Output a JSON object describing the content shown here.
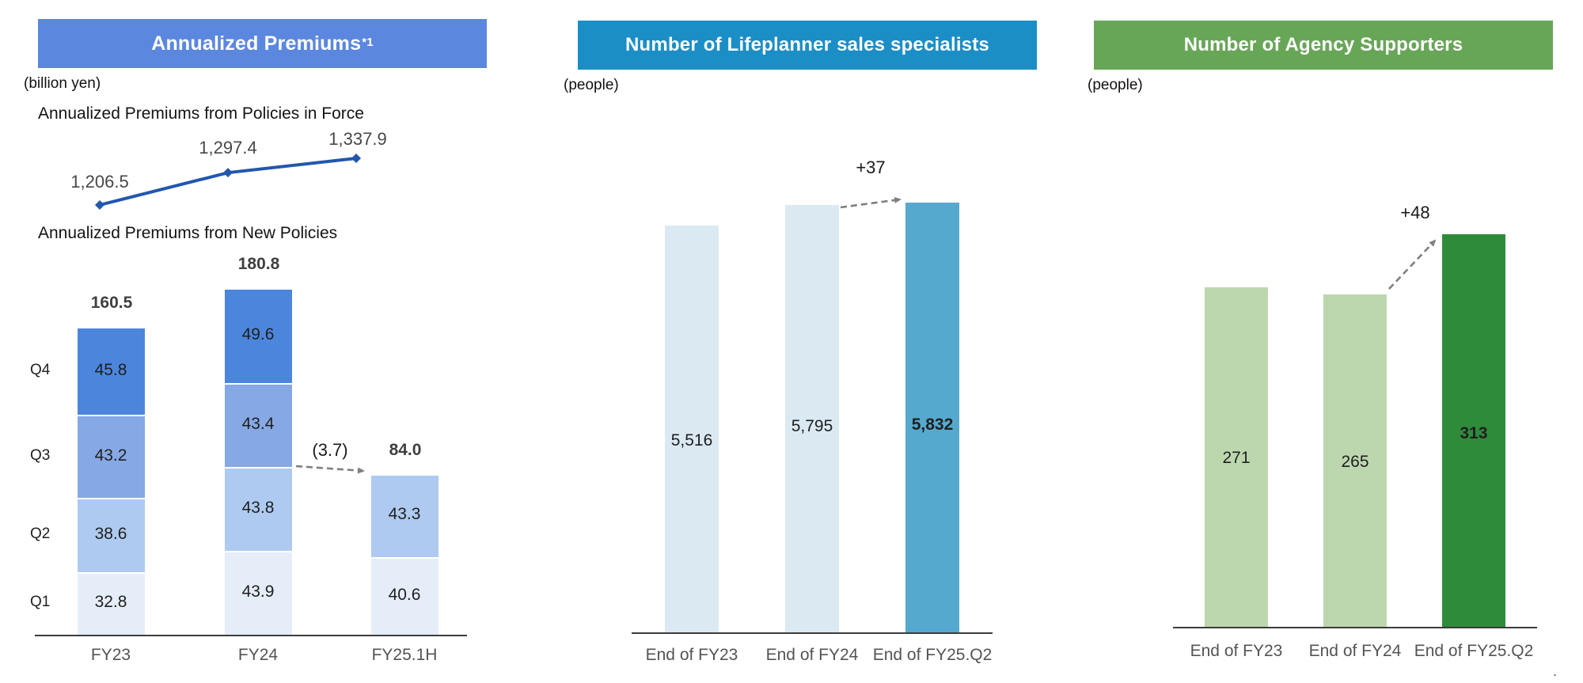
{
  "ui": {
    "panels": [
      {
        "id": "premiums",
        "header": "Annualized Premiums",
        "header_sup": "*1",
        "header_bg": "#5B87DF",
        "unit": "(billion yen)"
      },
      {
        "id": "lifeplanner",
        "header": "Number of Lifeplanner sales specialists",
        "header_bg": "#1B8EC6",
        "unit": "(people)"
      },
      {
        "id": "agency",
        "header": "Number of Agency Supporters",
        "header_bg": "#68A657",
        "unit": "(people)"
      }
    ],
    "footnote_mark": "."
  },
  "chart_data": [
    {
      "id": "policies-in-force-line",
      "type": "line",
      "title": "Annualized Premiums from Policies in Force",
      "unit": "billion yen",
      "x": [
        "FY23",
        "FY24",
        "FY25.1H"
      ],
      "values": [
        1206.5,
        1297.4,
        1337.9
      ],
      "labels": [
        "1,206.5",
        "1,297.4",
        "1,337.9"
      ],
      "line_color": "#2357AE",
      "marker": "diamond",
      "grid": false,
      "legend": "none"
    },
    {
      "id": "new-policies-stacked",
      "type": "bar",
      "stacked": true,
      "title": "Annualized Premiums from New Policies",
      "unit": "billion yen",
      "categories": [
        "FY23",
        "FY24",
        "FY25.1H"
      ],
      "row_labels": [
        "Q4",
        "Q3",
        "Q2",
        "Q1"
      ],
      "series": [
        {
          "name": "Q1",
          "color": "#E5EDF9",
          "values": [
            32.8,
            43.9,
            40.6
          ],
          "labels": [
            "32.8",
            "43.9",
            "40.6"
          ]
        },
        {
          "name": "Q2",
          "color": "#AECAF0",
          "values": [
            38.6,
            43.8,
            43.3
          ],
          "labels": [
            "38.6",
            "43.8",
            "43.3"
          ]
        },
        {
          "name": "Q3",
          "color": "#86A9E5",
          "values": [
            43.2,
            43.4,
            null
          ],
          "labels": [
            "43.2",
            "43.4",
            null
          ]
        },
        {
          "name": "Q4",
          "color": "#4C86DC",
          "values": [
            45.8,
            49.6,
            null
          ],
          "labels": [
            "45.8",
            "49.6",
            null
          ]
        }
      ],
      "totals": [
        "160.5",
        "180.8",
        "84.0"
      ],
      "annotation": {
        "text": "(3.7)"
      },
      "ylim": [
        0,
        190
      ],
      "grid": false,
      "legend": "none"
    },
    {
      "id": "lifeplanner-bars",
      "type": "bar",
      "stacked": false,
      "title": "Number of Lifeplanner sales specialists",
      "unit": "people",
      "categories": [
        "End of FY23",
        "End of FY24",
        "End of FY25.Q2"
      ],
      "values": [
        5516,
        5795,
        5832
      ],
      "labels": [
        "5,516",
        "5,795",
        "5,832"
      ],
      "colors": [
        "#DAE9F2",
        "#DAE9F2",
        "#55A9CE"
      ],
      "annotation": {
        "text": "+37"
      },
      "ylim": [
        0,
        6000
      ],
      "grid": false,
      "legend": "none"
    },
    {
      "id": "agency-bars",
      "type": "bar",
      "stacked": false,
      "title": "Number of Agency Supporters",
      "unit": "people",
      "categories": [
        "End of FY23",
        "End of FY24",
        "End of FY25.Q2"
      ],
      "values": [
        271,
        265,
        313
      ],
      "labels": [
        "271",
        "265",
        "313"
      ],
      "colors": [
        "#BCD7AE",
        "#BCD7AE",
        "#2E8B3A"
      ],
      "annotation": {
        "text": "+48"
      },
      "ylim": [
        0,
        330
      ],
      "grid": false,
      "legend": "none"
    }
  ]
}
